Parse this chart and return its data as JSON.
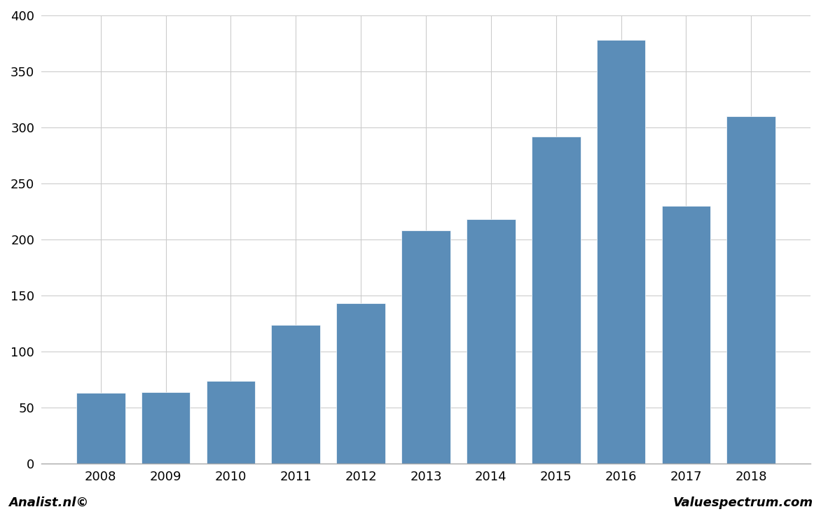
{
  "years": [
    "2008",
    "2009",
    "2010",
    "2011",
    "2012",
    "2013",
    "2014",
    "2015",
    "2016",
    "2017",
    "2018"
  ],
  "values": [
    63,
    64,
    74,
    124,
    143,
    208,
    218,
    292,
    378,
    230,
    310
  ],
  "bar_color": "#5b8db8",
  "ylim": [
    0,
    400
  ],
  "yticks": [
    0,
    50,
    100,
    150,
    200,
    250,
    300,
    350,
    400
  ],
  "background_color": "#ffffff",
  "plot_bg_color": "#ffffff",
  "grid_color": "#cccccc",
  "footer_left": "Analist.nl©",
  "footer_right": "Valuespectrum.com",
  "bar_edge_color": "white",
  "bar_linewidth": 0.5
}
